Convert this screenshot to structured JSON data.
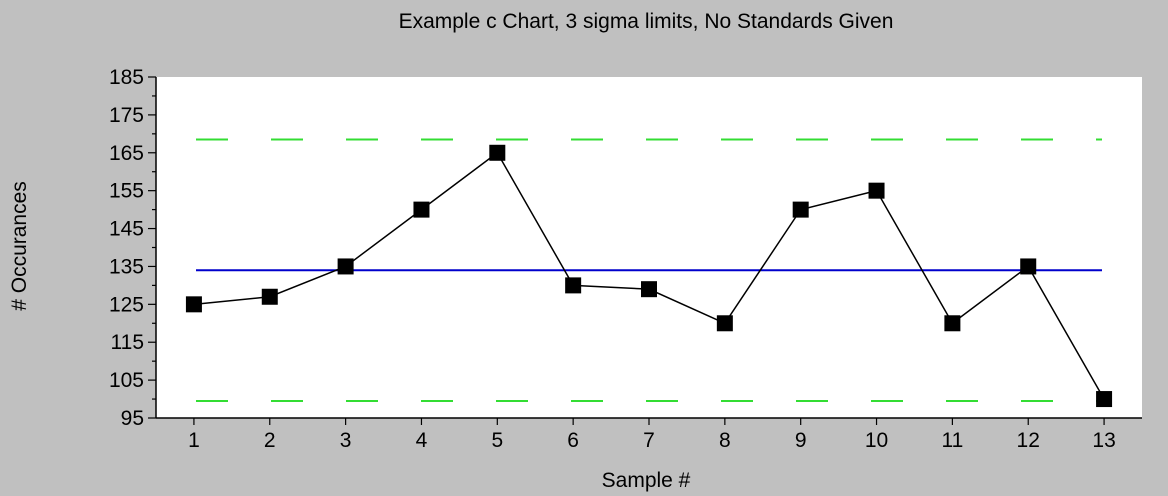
{
  "chart_data": {
    "type": "line",
    "title": "Example c Chart, 3 sigma limits, No Standards Given",
    "xlabel": "Sample #",
    "ylabel": "# Occurances",
    "x": [
      1,
      2,
      3,
      4,
      5,
      6,
      7,
      8,
      9,
      10,
      11,
      12,
      13
    ],
    "xlim": [
      0.5,
      13.5
    ],
    "ylim": [
      95,
      185
    ],
    "yticks": [
      95,
      105,
      115,
      125,
      135,
      145,
      155,
      165,
      175,
      185
    ],
    "series": [
      {
        "name": "",
        "color": "#000000",
        "marker": "square",
        "values": [
          125,
          127,
          135,
          150,
          165,
          130,
          129,
          120,
          150,
          155,
          120,
          135,
          100
        ]
      }
    ],
    "reference_lines": [
      {
        "role": "center-line",
        "value": 134,
        "color": "#0000cc",
        "style": "solid"
      },
      {
        "role": "upper-control-limit",
        "value": 168.5,
        "color": "#33dd33",
        "style": "dashed"
      },
      {
        "role": "lower-control-limit",
        "value": 99.5,
        "color": "#33dd33",
        "style": "dashed"
      }
    ],
    "grid": false,
    "plot_background": "#ffffff",
    "figure_background": "#c0c0c0"
  }
}
